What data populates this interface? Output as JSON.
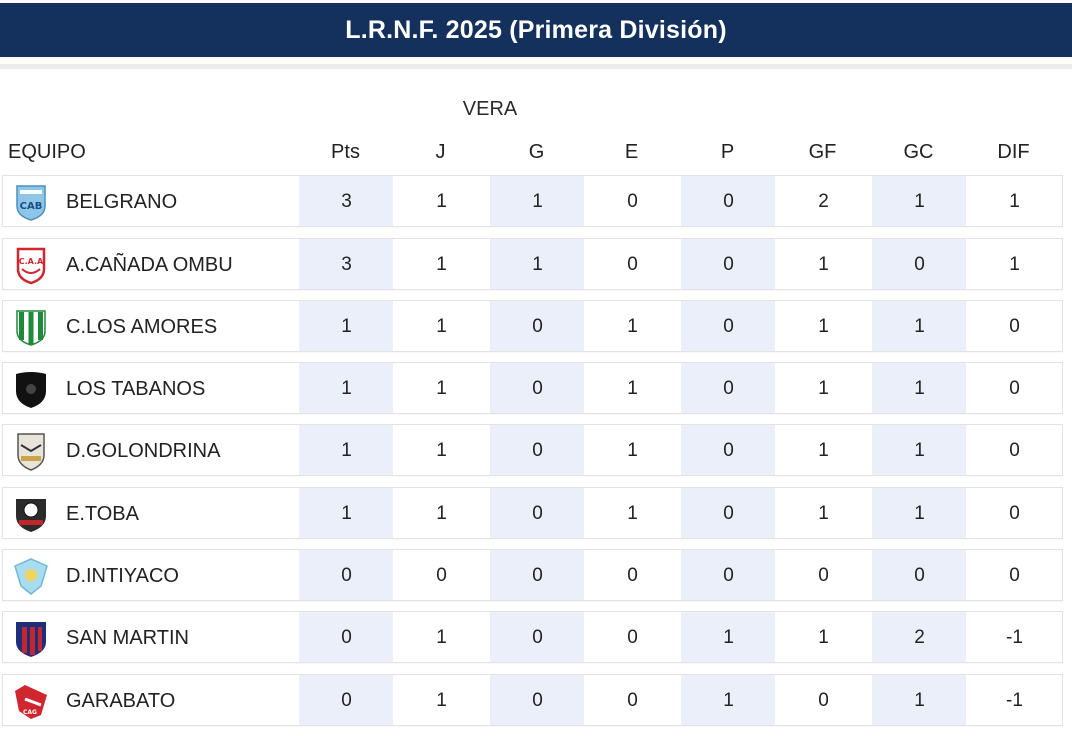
{
  "title": "L.R.N.F. 2025 (Primera División)",
  "zone_label": "VERA",
  "columns": {
    "team": "EQUIPO",
    "stats": [
      "Pts",
      "J",
      "G",
      "E",
      "P",
      "GF",
      "GC",
      "DIF"
    ]
  },
  "rows": [
    {
      "team": "BELGRANO",
      "logo": "belgrano-crest-icon",
      "stats": [
        "3",
        "1",
        "1",
        "0",
        "0",
        "2",
        "1",
        "1"
      ]
    },
    {
      "team": "A.CAÑADA OMBU",
      "logo": "canada-ombu-crest-icon",
      "stats": [
        "3",
        "1",
        "1",
        "0",
        "0",
        "1",
        "0",
        "1"
      ]
    },
    {
      "team": "C.LOS AMORES",
      "logo": "los-amores-crest-icon",
      "stats": [
        "1",
        "1",
        "0",
        "1",
        "0",
        "1",
        "1",
        "0"
      ]
    },
    {
      "team": "LOS TABANOS",
      "logo": "los-tabanos-crest-icon",
      "stats": [
        "1",
        "1",
        "0",
        "1",
        "0",
        "1",
        "1",
        "0"
      ]
    },
    {
      "team": "D.GOLONDRINA",
      "logo": "golondrina-crest-icon",
      "stats": [
        "1",
        "1",
        "0",
        "1",
        "0",
        "1",
        "1",
        "0"
      ]
    },
    {
      "team": "E.TOBA",
      "logo": "toba-crest-icon",
      "stats": [
        "1",
        "1",
        "0",
        "1",
        "0",
        "1",
        "1",
        "0"
      ]
    },
    {
      "team": "D.INTIYACO",
      "logo": "intiyaco-crest-icon",
      "stats": [
        "0",
        "0",
        "0",
        "0",
        "0",
        "0",
        "0",
        "0"
      ]
    },
    {
      "team": "SAN MARTIN",
      "logo": "san-martin-crest-icon",
      "stats": [
        "0",
        "1",
        "0",
        "0",
        "1",
        "1",
        "2",
        "-1"
      ]
    },
    {
      "team": "GARABATO",
      "logo": "garabato-crest-icon",
      "stats": [
        "0",
        "1",
        "0",
        "0",
        "1",
        "0",
        "1",
        "-1"
      ]
    }
  ],
  "colors": {
    "header_bg": "#13315c",
    "shade": "#eaeffa"
  }
}
